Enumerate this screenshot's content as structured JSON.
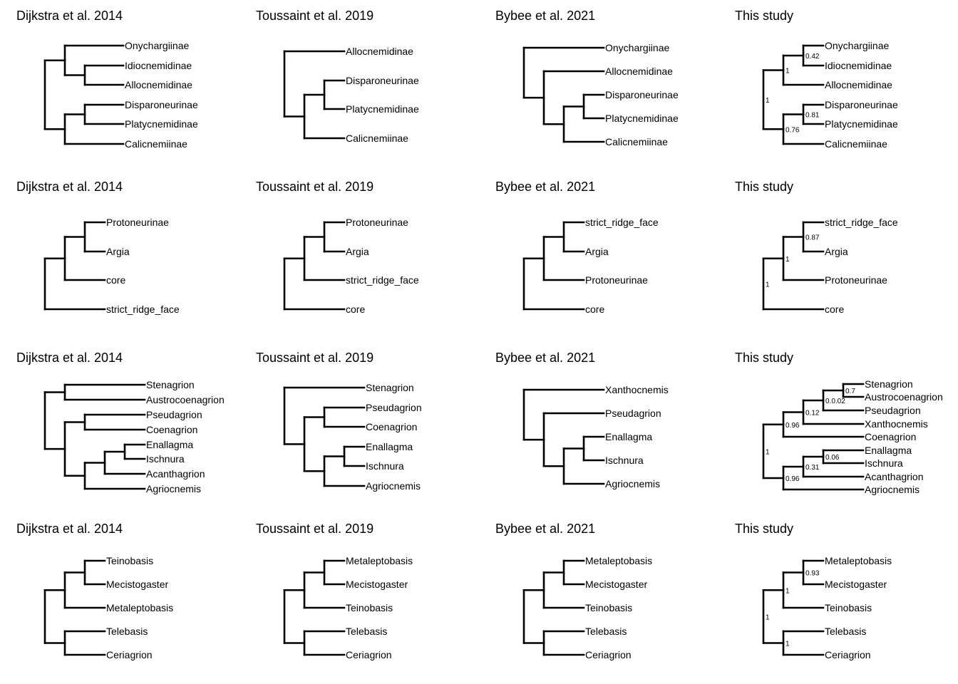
{
  "panels": [
    {
      "title": "Dijkstra et al. 2014",
      "tips": [
        "Onychargiinae",
        "Idiocnemidinae",
        "Allocnemidinae",
        "Disparoneurinae",
        "Platycnemidinae",
        "Calicnemiinae"
      ]
    },
    {
      "title": "Toussaint et al. 2019",
      "tips": [
        "Allocnemidinae",
        "Disparoneurinae",
        "Platycnemidinae",
        "Calicnemiinae"
      ]
    },
    {
      "title": "Bybee et al. 2021",
      "tips": [
        "Onychargiinae",
        "Allocnemidinae",
        "Disparoneurinae",
        "Platycnemidinae",
        "Calicnemiinae"
      ]
    },
    {
      "title": "This study",
      "tips": [
        "Onychargiinae",
        "Idiocnemidinae",
        "Allocnemidinae",
        "Disparoneurinae",
        "Platycnemidinae",
        "Calicnemiinae"
      ],
      "supports": [
        "0.42",
        "0.81",
        "1",
        "0.76",
        "1"
      ]
    },
    {
      "title": "Dijkstra et al. 2014",
      "tips": [
        "Protoneurinae",
        "Argia",
        "core",
        "strict_ridge_face"
      ]
    },
    {
      "title": "Toussaint et al. 2019",
      "tips": [
        "Protoneurinae",
        "Argia",
        "strict_ridge_face",
        "core"
      ]
    },
    {
      "title": "Bybee et al. 2021",
      "tips": [
        "strict_ridge_face",
        "Argia",
        "Protoneurinae",
        "core"
      ]
    },
    {
      "title": "This study",
      "tips": [
        "strict_ridge_face",
        "Argia",
        "Protoneurinae",
        "core"
      ],
      "supports": [
        "0.87",
        "1",
        "1"
      ]
    },
    {
      "title": "Dijkstra et al. 2014",
      "tips": [
        "Stenagrion",
        "Austrocoenagrion",
        "Pseudagrion",
        "Coenagrion",
        "Enallagma",
        "Ischnura",
        "Acanthagrion",
        "Agriocnemis"
      ]
    },
    {
      "title": "Toussaint et al. 2019",
      "tips": [
        "Stenagrion",
        "Pseudagrion",
        "Coenagrion",
        "Enallagma",
        "Ischnura",
        "Agriocnemis"
      ]
    },
    {
      "title": "Bybee et al. 2021",
      "tips": [
        "Xanthocnemis",
        "Pseudagrion",
        "Enallagma",
        "Ischnura",
        "Agriocnemis"
      ]
    },
    {
      "title": "This study",
      "tips": [
        "Stenagrion",
        "Austrocoenagrion",
        "Pseudagrion",
        "Xanthocnemis",
        "Coenagrion",
        "Enallagma",
        "Ischnura",
        "Acanthagrion",
        "Agriocnemis"
      ],
      "supports": [
        "0.7",
        "0.0.02",
        "0.06",
        "0.12",
        "0.31",
        "0.96",
        "0.96",
        "1"
      ]
    },
    {
      "title": "Dijkstra et al. 2014",
      "tips": [
        "Teinobasis",
        "Mecistogaster",
        "Metaleptobasis",
        "Telebasis",
        "Ceriagrion"
      ]
    },
    {
      "title": "Toussaint et al. 2019",
      "tips": [
        "Metaleptobasis",
        "Mecistogaster",
        "Teinobasis",
        "Telebasis",
        "Ceriagrion"
      ]
    },
    {
      "title": "Bybee et al. 2021",
      "tips": [
        "Metaleptobasis",
        "Mecistogaster",
        "Teinobasis",
        "Telebasis",
        "Ceriagrion"
      ]
    },
    {
      "title": "This study",
      "tips": [
        "Metaleptobasis",
        "Mecistogaster",
        "Teinobasis",
        "Telebasis",
        "Ceriagrion"
      ],
      "supports": [
        "0.93",
        "1",
        "1",
        "1"
      ]
    }
  ]
}
